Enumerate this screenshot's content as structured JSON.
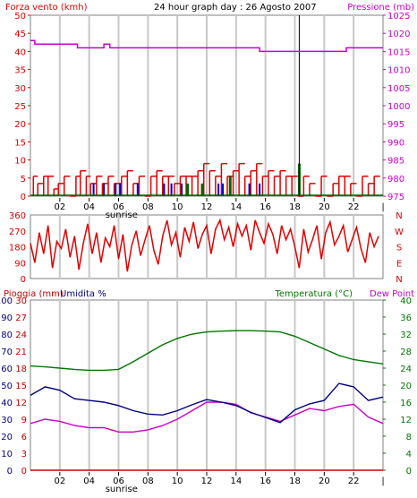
{
  "header": {
    "left_title": "Forza vento (kmh)",
    "center_title": "24 hour graph day : 26 Agosto 2007",
    "right_title": "Pressione (mb)"
  },
  "axis_labels": {
    "rain": "Pioggia (mm)",
    "humidity": "Umidita %",
    "temperature": "Temperatura (°C)",
    "dew_point": "Dew Point",
    "sunrise": "sunrise"
  },
  "colors": {
    "wind_red": "#e00000",
    "gust_green": "#006400",
    "calm_blue": "#0000cc",
    "pressure_magenta": "#cc00cc",
    "humidity_navy": "#000080",
    "temperature_green": "#007700",
    "dew_magenta": "#cc00cc",
    "rain_red": "#cc0000",
    "grid_gray": "#c8c8c8",
    "frame": "#808080",
    "cursor": "#000000"
  },
  "x_axis": {
    "hour_ticks": [
      "02",
      "04",
      "06",
      "08",
      "10",
      "12",
      "14",
      "16",
      "18",
      "20",
      "22"
    ],
    "end_tick": "|",
    "sunrise_hour": 6.2,
    "cursor_hour": 18.3
  },
  "chart_data": [
    {
      "type": "bar",
      "title": "24 hour graph day : 26 Agosto 2007",
      "ylabel_left": "Forza vento (kmh)",
      "ylabel_right": "Pressione (mb)",
      "ylim_left": [
        0,
        50
      ],
      "yticks_left": [
        "0",
        "5",
        "10",
        "15",
        "20",
        "25",
        "30",
        "35",
        "40",
        "45",
        "50"
      ],
      "ylim_right": [
        975,
        1025
      ],
      "yticks_right": [
        "975",
        "980",
        "985",
        "990",
        "995",
        "1000",
        "1005",
        "1010",
        "1015",
        "1020",
        "1025"
      ],
      "wind_speed": {
        "x_hours": [
          0.2,
          0.5,
          0.9,
          1.2,
          1.6,
          1.9,
          2.3,
          2.7,
          3.1,
          3.4,
          3.8,
          4.1,
          4.5,
          4.9,
          5.3,
          5.7,
          6.2,
          6.6,
          7.0,
          7.4,
          7.8,
          8.2,
          8.6,
          9.0,
          9.4,
          9.8,
          10.2,
          10.6,
          11.0,
          11.4,
          11.8,
          12.2,
          12.6,
          13.0,
          13.4,
          13.8,
          14.2,
          14.6,
          15.0,
          15.4,
          15.8,
          16.2,
          16.6,
          17.0,
          17.4,
          17.8,
          18.2,
          18.6,
          19.0,
          19.4,
          19.8,
          20.2,
          20.6,
          21.0,
          21.4,
          21.8,
          22.2,
          22.6,
          23.0,
          23.4
        ],
        "values": [
          5.5,
          3.5,
          5.5,
          5.5,
          2,
          3.5,
          5.5,
          0,
          5.5,
          7,
          5.5,
          3.5,
          5.5,
          3.5,
          5.5,
          3.5,
          5.5,
          7,
          3.5,
          5.5,
          0,
          5.5,
          7,
          5.5,
          5.5,
          3.5,
          5.5,
          5.5,
          5.5,
          7,
          9,
          7,
          5.5,
          9,
          5.5,
          7,
          9,
          5.5,
          7,
          9,
          5.5,
          7,
          5.5,
          7,
          5.5,
          5.5,
          0,
          5.5,
          3.5,
          0,
          5.5,
          0,
          3.5,
          5.5,
          5.5,
          3.5,
          0,
          5.5,
          3.5,
          5.5
        ]
      },
      "wind_gust_bars": {
        "x_hours": [
          10.7,
          11.7,
          13.6,
          18.3
        ],
        "values": [
          3.5,
          3.5,
          5.5,
          9
        ]
      },
      "calm_markers": {
        "x_hours": [
          4.3,
          5.0,
          5.8,
          6.1,
          7.3,
          9.1,
          9.6,
          10.3,
          12.8,
          13.1,
          14.9,
          15.6
        ],
        "values": [
          3.5,
          3.5,
          3.5,
          3.5,
          3.5,
          3.5,
          3.5,
          3.5,
          3.5,
          3.5,
          3.5,
          3.5
        ]
      },
      "pressure": {
        "x_hours": [
          0,
          0.3,
          0.3,
          3.2,
          3.2,
          5.0,
          5.0,
          5.4,
          5.4,
          12.3,
          12.3,
          15.6,
          15.6,
          21.5,
          21.5,
          24
        ],
        "values": [
          1018,
          1018,
          1017,
          1017,
          1016,
          1016,
          1017,
          1017,
          1016,
          1016,
          1016,
          1016,
          1015,
          1015,
          1016,
          1016
        ]
      }
    },
    {
      "type": "line",
      "title": "",
      "ylim": [
        0,
        360
      ],
      "yticks_left": [
        "0",
        "90",
        "180",
        "270",
        "360"
      ],
      "yticks_right": [
        "N",
        "E",
        "S",
        "W",
        "N"
      ],
      "series": [
        {
          "x_hours": [
            0.0,
            0.3,
            0.6,
            0.9,
            1.2,
            1.5,
            1.8,
            2.1,
            2.4,
            2.7,
            3.0,
            3.3,
            3.6,
            3.9,
            4.2,
            4.5,
            4.8,
            5.1,
            5.4,
            5.7,
            6.0,
            6.3,
            6.6,
            6.9,
            7.2,
            7.5,
            7.8,
            8.1,
            8.4,
            8.7,
            9.0,
            9.3,
            9.6,
            9.9,
            10.2,
            10.5,
            10.8,
            11.1,
            11.4,
            11.7,
            12.0,
            12.3,
            12.6,
            12.9,
            13.2,
            13.5,
            13.8,
            14.1,
            14.4,
            14.7,
            15.0,
            15.3,
            15.6,
            15.9,
            16.2,
            16.5,
            16.8,
            17.1,
            17.4,
            17.7,
            18.0,
            18.3,
            18.6,
            18.9,
            19.2,
            19.5,
            19.8,
            20.1,
            20.4,
            20.7,
            21.0,
            21.3,
            21.6,
            21.9,
            22.2,
            22.5,
            22.8,
            23.1,
            23.4,
            23.7
          ],
          "values": [
            200,
            90,
            260,
            140,
            300,
            60,
            210,
            170,
            280,
            120,
            240,
            50,
            200,
            310,
            140,
            260,
            90,
            230,
            180,
            300,
            110,
            250,
            40,
            190,
            270,
            130,
            220,
            300,
            160,
            80,
            240,
            330,
            190,
            260,
            120,
            290,
            210,
            320,
            170,
            250,
            300,
            140,
            280,
            330,
            220,
            290,
            180,
            310,
            240,
            300,
            160,
            330,
            260,
            200,
            310,
            250,
            140,
            300,
            220,
            280,
            180,
            60,
            280,
            150,
            220,
            300,
            110,
            260,
            320,
            190,
            240,
            300,
            150,
            220,
            290,
            170,
            90,
            260,
            180,
            240
          ]
        }
      ]
    },
    {
      "type": "line",
      "title": "",
      "ylabel_left": "Pioggia (mm)  Umidita %",
      "ylabel_right": "Temperatura (°C) Dew Point",
      "ylim_rain": [
        0,
        30
      ],
      "yticks_rain": [
        "0",
        "3",
        "6",
        "9",
        "12",
        "15",
        "18",
        "21",
        "24",
        "27",
        "30"
      ],
      "ylim_humidity": [
        0,
        100
      ],
      "yticks_humidity": [
        "0",
        "10",
        "20",
        "30",
        "40",
        "50",
        "60",
        "70",
        "80",
        "90",
        "100"
      ],
      "ylim_temperature": [
        0,
        40
      ],
      "yticks_temperature": [
        "0",
        "4",
        "8",
        "12",
        "16",
        "20",
        "24",
        "28",
        "32",
        "36",
        "40"
      ],
      "series": [
        {
          "name": "Temperatura (°C)",
          "axis": "temperature",
          "x_hours": [
            0,
            1,
            2,
            3,
            4,
            5,
            6,
            7,
            8,
            9,
            10,
            11,
            12,
            13,
            14,
            15,
            16,
            17,
            18,
            19,
            20,
            21,
            22,
            23,
            24
          ],
          "values": [
            24.5,
            24.3,
            24.0,
            23.7,
            23.5,
            23.5,
            23.7,
            25.5,
            27.5,
            29.5,
            31.0,
            32.0,
            32.5,
            32.7,
            32.8,
            32.8,
            32.7,
            32.5,
            31.5,
            30.0,
            28.5,
            27.0,
            26.0,
            25.5,
            25.0
          ]
        },
        {
          "name": "Dew Point",
          "axis": "temperature",
          "x_hours": [
            0,
            1,
            2,
            3,
            4,
            5,
            6,
            7,
            8,
            9,
            10,
            11,
            12,
            13,
            14,
            15,
            16,
            17,
            18,
            19,
            20,
            21,
            22,
            23,
            24
          ],
          "values": [
            11.0,
            12.0,
            11.5,
            10.5,
            10.0,
            10.0,
            9.0,
            9.0,
            9.5,
            10.5,
            12.0,
            14.0,
            16.0,
            16.0,
            15.5,
            13.5,
            12.5,
            11.5,
            13.0,
            14.5,
            14.0,
            15.0,
            15.5,
            12.5,
            11.0
          ]
        },
        {
          "name": "Umidita %",
          "axis": "humidity",
          "x_hours": [
            0,
            1,
            2,
            3,
            4,
            5,
            6,
            7,
            8,
            9,
            10,
            11,
            12,
            13,
            14,
            15,
            16,
            17,
            18,
            19,
            20,
            21,
            22,
            23,
            24
          ],
          "values": [
            44.0,
            49.0,
            47.0,
            42.0,
            41.0,
            40.0,
            38.0,
            35.0,
            33.0,
            32.5,
            35.0,
            38.5,
            41.5,
            40.0,
            38.0,
            34.0,
            31.0,
            28.0,
            35.5,
            39.0,
            41.0,
            51.0,
            49.0,
            41.0,
            43.0
          ]
        },
        {
          "name": "Pioggia (mm)",
          "axis": "rain",
          "x_hours": [
            0,
            24
          ],
          "values": [
            0,
            0
          ]
        }
      ]
    }
  ]
}
